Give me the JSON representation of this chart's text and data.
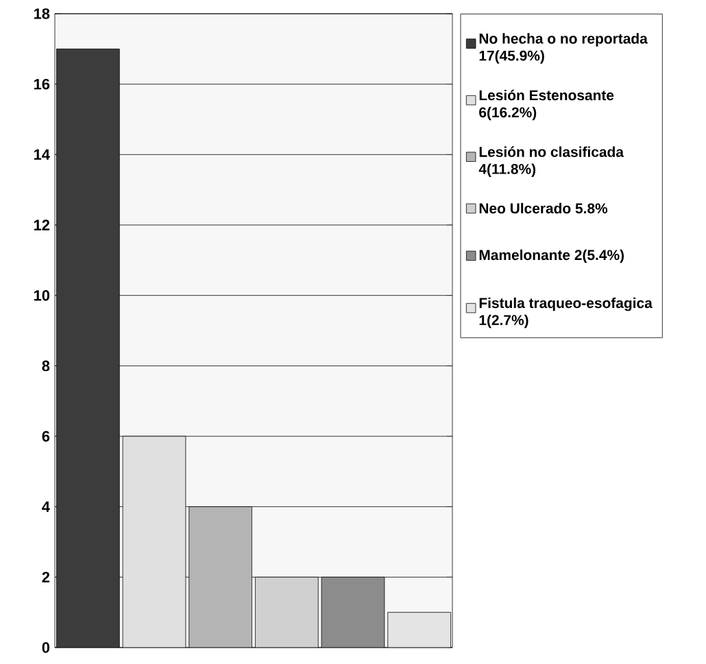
{
  "chart_data": {
    "type": "bar",
    "categories": [
      null,
      null,
      null,
      null,
      null,
      null
    ],
    "series": [
      {
        "name": "No hecha o no reportada 17(45.9%)",
        "color": "#3c3c3c",
        "values": [
          17,
          null,
          null,
          null,
          null,
          null
        ]
      },
      {
        "name": "Lesión Estenosante 6(16.2%)",
        "color": "#e0e0e0",
        "values": [
          null,
          6,
          null,
          null,
          null,
          null
        ]
      },
      {
        "name": "Lesión no clasificada 4(11.8%)",
        "color": "#b4b4b4",
        "values": [
          null,
          null,
          4,
          null,
          null,
          null
        ]
      },
      {
        "name": "Neo Ulcerado 5.8%",
        "color": "#d0d0d0",
        "values": [
          null,
          null,
          null,
          2,
          null,
          null
        ]
      },
      {
        "name": "Mamelonante 2(5.4%)",
        "color": "#8c8c8c",
        "values": [
          null,
          null,
          null,
          null,
          2,
          null
        ]
      },
      {
        "name": "Fistula traqueo-esofagica 1(2.7%)",
        "color": "#e4e4e4",
        "values": [
          null,
          null,
          null,
          null,
          null,
          1
        ]
      }
    ],
    "ylim": [
      0,
      18
    ],
    "yticks": [
      0,
      2,
      4,
      6,
      8,
      10,
      12,
      14,
      16,
      18
    ],
    "grid": "y",
    "legend": "right"
  }
}
